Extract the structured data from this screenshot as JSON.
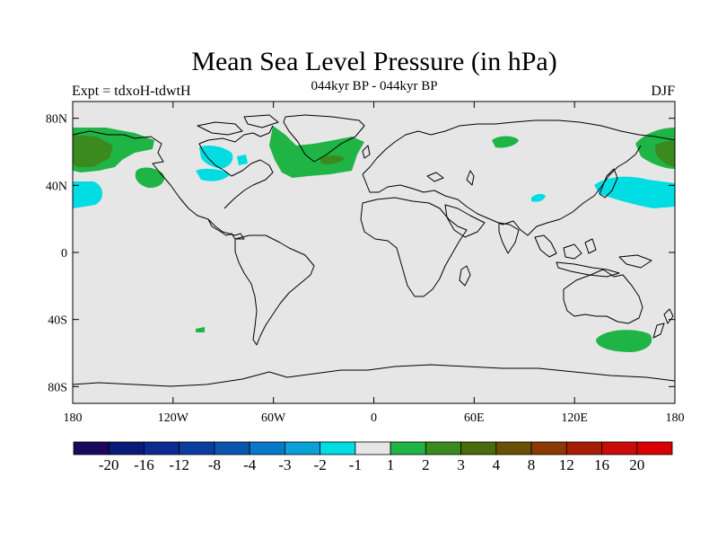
{
  "title": "Mean Sea Level Pressure (in hPa)",
  "subtitle": "044kyr BP - 044kyr BP",
  "left_label": "Expt = tdxoH-tdwtH",
  "right_label": "DJF",
  "colors": {
    "land_ocean_background": "#e6e6e6",
    "coastline": "#000000"
  },
  "map": {
    "lon_range": [
      -180,
      180
    ],
    "lat_range": [
      -90,
      90
    ],
    "x_ticks": [
      "180",
      "120W",
      "60W",
      "0",
      "60E",
      "120E",
      "180"
    ],
    "y_ticks": [
      "80N",
      "40N",
      "0",
      "40S",
      "80S"
    ]
  },
  "colorbar": {
    "colors": [
      "#1a0a5e",
      "#0a1a7a",
      "#0c2a92",
      "#0a3e9e",
      "#0a54b0",
      "#0a78c8",
      "#0aa0d8",
      "#00dde2",
      "#e6e6e6",
      "#20b446",
      "#3a8a1e",
      "#4a6a0c",
      "#6a5004",
      "#8a3a02",
      "#a81e02",
      "#c80c08",
      "#d80000"
    ],
    "labels": [
      "-20",
      "-16",
      "-12",
      "-8",
      "-4",
      "-3",
      "-2",
      "-1",
      "1",
      "2",
      "3",
      "4",
      "8",
      "12",
      "16",
      "20"
    ]
  }
}
